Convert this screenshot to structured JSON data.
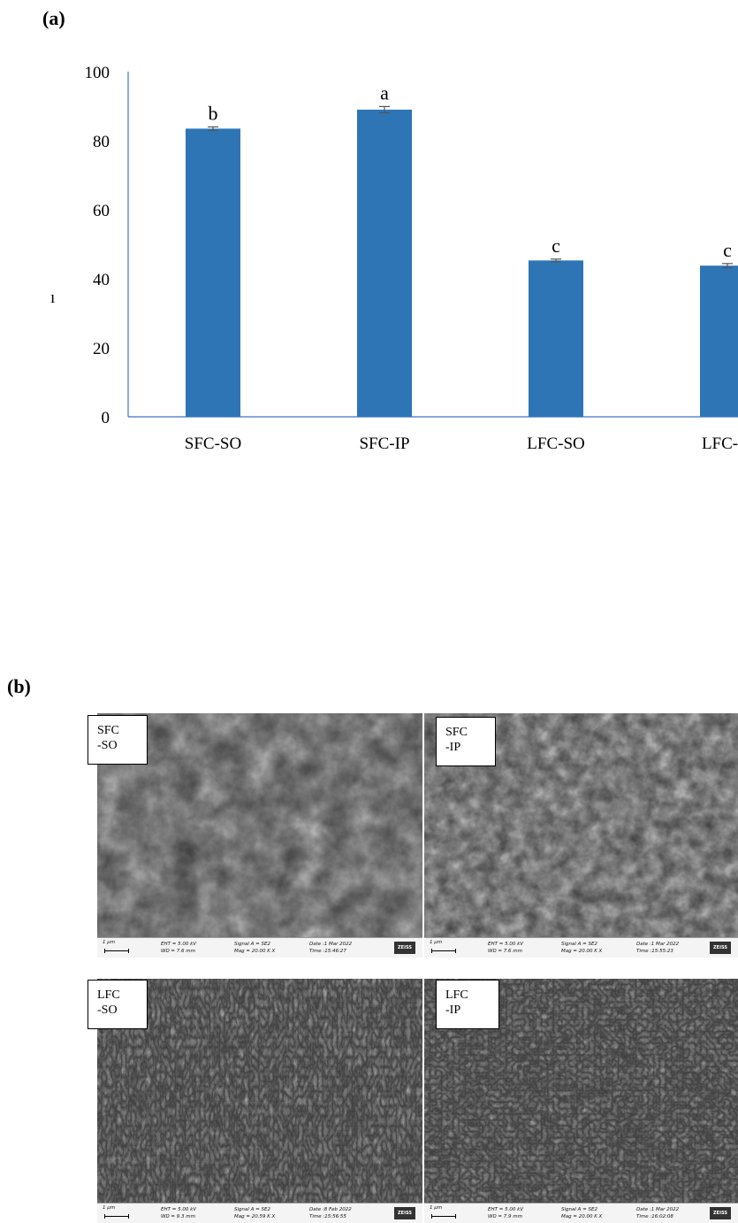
{
  "panel_a_label": "(a)",
  "panel_b_label": "(b)",
  "chart_data": {
    "type": "bar",
    "categories": [
      "SFC-SO",
      "SFC-IP",
      "LFC-SO",
      "LFC-IP"
    ],
    "values": [
      83.5,
      89.0,
      45.3,
      43.8
    ],
    "errors": [
      0.5,
      0.9,
      0.4,
      0.6
    ],
    "significance": [
      "b",
      "a",
      "c",
      "c"
    ],
    "ylim": [
      0,
      100
    ],
    "yticks": [
      0,
      20,
      40,
      60,
      80,
      100
    ],
    "ylabel_fragment": "ı",
    "bar_color": "#2e75b6",
    "axis_color": "#4472c4",
    "grid": false
  },
  "sem_images": [
    {
      "tag_line1": "SFC",
      "tag_line2": "-SO",
      "scale": "1 μm",
      "eht": "EHT =  5.00 kV",
      "wd": "WD =  7.6 mm",
      "signal": "Signal A = SE2",
      "mag": "Mag =  20.00 K X",
      "date": "Date :1 Mar 2022",
      "time": "Time :15:46:27",
      "logo": "ZEISS"
    },
    {
      "tag_line1": "SFC",
      "tag_line2": "-IP",
      "scale": "1 μm",
      "eht": "EHT =  5.00 kV",
      "wd": "WD =  7.6 mm",
      "signal": "Signal A = SE2",
      "mag": "Mag =  20.00 K X",
      "date": "Date :1 Mar 2022",
      "time": "Time :15:55:23",
      "logo": "ZEISS"
    },
    {
      "tag_line1": "LFC",
      "tag_line2": "-SO",
      "scale": "1 μm",
      "eht": "EHT =  5.00 kV",
      "wd": "WD =  9.3 mm",
      "signal": "Signal A = SE2",
      "mag": "Mag =  20.59 K X",
      "date": "Date :8 Feb 2022",
      "time": "Time :15:56:55",
      "logo": "ZEISS"
    },
    {
      "tag_line1": "LFC",
      "tag_line2": "-IP",
      "scale": "1 μm",
      "eht": "EHT =  5.00 kV",
      "wd": "WD =  7.9 mm",
      "signal": "Signal A = SE2",
      "mag": "Mag =  20.00 K X",
      "date": "Date :1 Mar 2022",
      "time": "Time :16:02:08",
      "logo": "ZEISS"
    }
  ]
}
